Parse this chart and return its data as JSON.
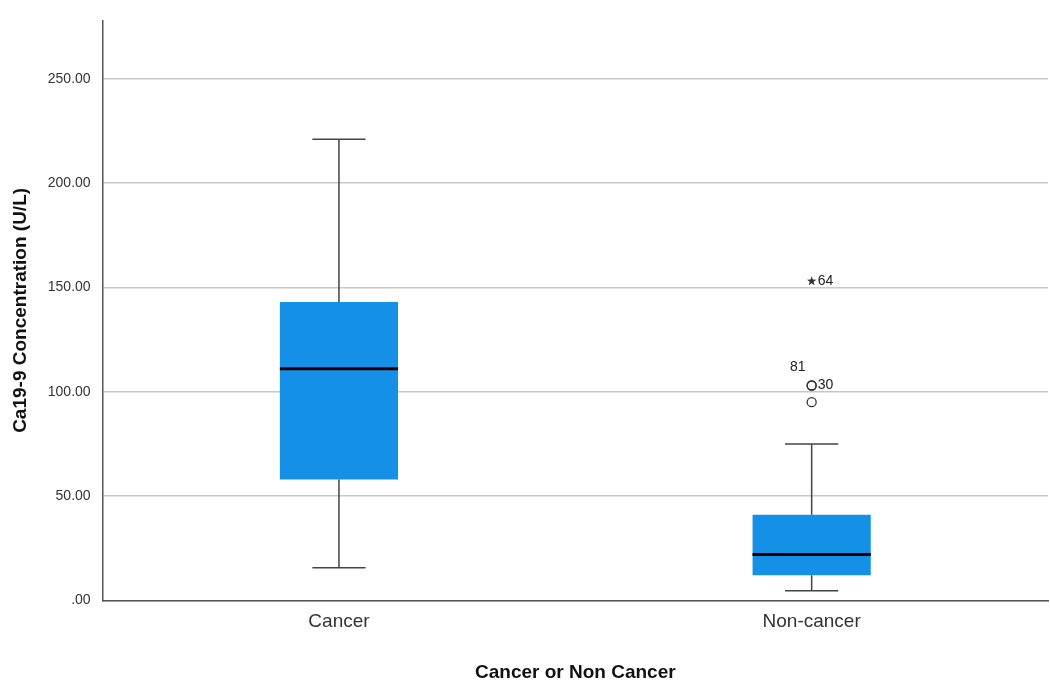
{
  "chart_data": {
    "type": "box",
    "xlabel": "Cancer or Non Cancer",
    "ylabel": "Ca19-9 Concentration (U/L)",
    "categories": [
      "Cancer",
      "Non-cancer"
    ],
    "color": "#1490e6",
    "boxes": [
      {
        "low": 15.7,
        "q1": 58,
        "median": 111,
        "q3": 143,
        "high": 221
      },
      {
        "low": 4.6,
        "q1": 12,
        "median": 22,
        "q3": 41,
        "high": 75,
        "outliers": [
          103,
          103,
          153,
          95
        ]
      }
    ],
    "ylim": [
      0,
      278
    ],
    "yticks": [
      {
        "value": 0,
        "label": ".00"
      },
      {
        "value": 50,
        "label": "50.00"
      },
      {
        "value": 100,
        "label": "100.00"
      },
      {
        "value": 150,
        "label": "150.00"
      },
      {
        "value": 200,
        "label": "200.00"
      },
      {
        "value": 250,
        "label": "250.00"
      }
    ],
    "grid": "y",
    "legend": false,
    "annotations": [
      "30",
      "81",
      "64"
    ]
  }
}
